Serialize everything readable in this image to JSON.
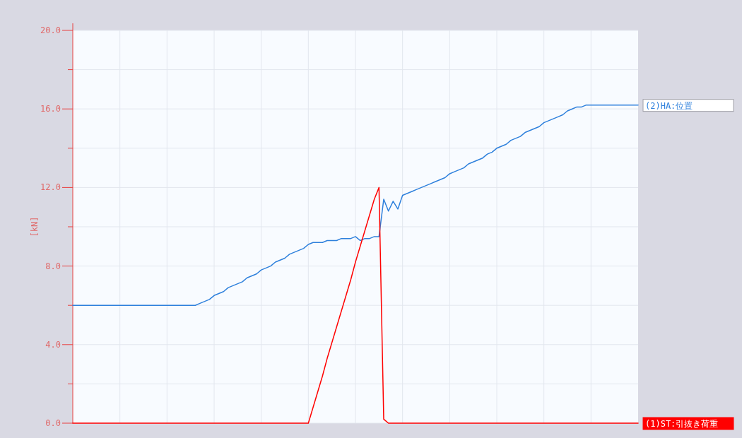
{
  "chart_data": {
    "type": "line",
    "ylabel": "[kN]",
    "ylim": [
      0,
      20
    ],
    "yticks": [
      {
        "value": 0,
        "label": "0.0"
      },
      {
        "value": 2,
        "label": null
      },
      {
        "value": 4,
        "label": "4.0"
      },
      {
        "value": 6,
        "label": null
      },
      {
        "value": 8,
        "label": "8.0"
      },
      {
        "value": 10,
        "label": null
      },
      {
        "value": 12,
        "label": "12.0"
      },
      {
        "value": 14,
        "label": null
      },
      {
        "value": 16,
        "label": "16.0"
      },
      {
        "value": 18,
        "label": null
      },
      {
        "value": 20,
        "label": "20.0"
      }
    ],
    "grid": true,
    "legend": false,
    "marker": "none",
    "line_style": "solid",
    "categories": [
      null,
      null,
      null,
      null,
      null,
      null,
      null,
      null,
      null,
      null,
      null,
      null,
      null,
      null,
      null,
      null,
      null,
      null,
      null,
      null,
      null,
      null,
      null,
      null,
      null,
      null,
      null,
      null,
      null,
      null,
      null,
      null,
      null,
      null,
      null,
      null,
      null,
      null,
      null,
      null,
      null,
      null,
      null,
      null,
      null,
      null,
      null,
      null,
      null,
      null,
      null,
      null,
      null,
      null,
      null,
      null,
      null,
      null,
      null,
      null,
      null,
      null,
      null,
      null,
      null,
      null,
      null,
      null,
      null,
      null,
      null,
      null,
      null,
      null,
      null,
      null,
      null,
      null,
      null,
      null,
      null,
      null,
      null,
      null,
      null,
      null,
      null,
      null,
      null,
      null,
      null,
      null,
      null,
      null,
      null,
      null,
      null,
      null,
      null,
      null,
      null,
      null,
      null,
      null,
      null,
      null,
      null,
      null,
      null,
      null,
      null,
      null,
      null,
      null,
      null,
      null,
      null,
      null,
      null,
      null,
      null
    ],
    "series": [
      {
        "name": "(2)HA:位置",
        "color": "#2e80dc",
        "values": [
          6.0,
          6.0,
          6.0,
          6.0,
          6.0,
          6.0,
          6.0,
          6.0,
          6.0,
          6.0,
          6.0,
          6.0,
          6.0,
          6.0,
          6.0,
          6.0,
          6.0,
          6.0,
          6.0,
          6.0,
          6.0,
          6.0,
          6.0,
          6.0,
          6.0,
          6.0,
          6.0,
          6.1,
          6.2,
          6.3,
          6.5,
          6.6,
          6.7,
          6.9,
          7.0,
          7.1,
          7.2,
          7.4,
          7.5,
          7.6,
          7.8,
          7.9,
          8.0,
          8.2,
          8.3,
          8.4,
          8.6,
          8.7,
          8.8,
          8.9,
          9.1,
          9.2,
          9.2,
          9.2,
          9.3,
          9.3,
          9.3,
          9.4,
          9.4,
          9.4,
          9.5,
          9.3,
          9.4,
          9.4,
          9.5,
          9.5,
          11.4,
          10.8,
          11.3,
          10.9,
          11.6,
          11.7,
          11.8,
          11.9,
          12.0,
          12.1,
          12.2,
          12.3,
          12.4,
          12.5,
          12.7,
          12.8,
          12.9,
          13.0,
          13.2,
          13.3,
          13.4,
          13.5,
          13.7,
          13.8,
          14.0,
          14.1,
          14.2,
          14.4,
          14.5,
          14.6,
          14.8,
          14.9,
          15.0,
          15.1,
          15.3,
          15.4,
          15.5,
          15.6,
          15.7,
          15.9,
          16.0,
          16.1,
          16.1,
          16.2,
          16.2,
          16.2,
          16.2,
          16.2,
          16.2,
          16.2,
          16.2,
          16.2,
          16.2,
          16.2,
          16.2
        ]
      },
      {
        "name": "(1)ST:引抜き荷重",
        "color": "#ff0000",
        "values": [
          0.0,
          0.0,
          0.0,
          0.0,
          0.0,
          0.0,
          0.0,
          0.0,
          0.0,
          0.0,
          0.0,
          0.0,
          0.0,
          0.0,
          0.0,
          0.0,
          0.0,
          0.0,
          0.0,
          0.0,
          0.0,
          0.0,
          0.0,
          0.0,
          0.0,
          0.0,
          0.0,
          0.0,
          0.0,
          0.0,
          0.0,
          0.0,
          0.0,
          0.0,
          0.0,
          0.0,
          0.0,
          0.0,
          0.0,
          0.0,
          0.0,
          0.0,
          0.0,
          0.0,
          0.0,
          0.0,
          0.0,
          0.0,
          0.0,
          0.0,
          0.0,
          0.8,
          1.6,
          2.4,
          3.3,
          4.1,
          4.9,
          5.7,
          6.5,
          7.3,
          8.2,
          9.0,
          9.8,
          10.6,
          11.4,
          12.0,
          0.2,
          0.0,
          0.0,
          0.0,
          0.0,
          0.0,
          0.0,
          0.0,
          0.0,
          0.0,
          0.0,
          0.0,
          0.0,
          0.0,
          0.0,
          0.0,
          0.0,
          0.0,
          0.0,
          0.0,
          0.0,
          0.0,
          0.0,
          0.0,
          0.0,
          0.0,
          0.0,
          0.0,
          0.0,
          0.0,
          0.0,
          0.0,
          0.0,
          0.0,
          0.0,
          0.0,
          0.0,
          0.0,
          0.0,
          0.0,
          0.0,
          0.0,
          0.0,
          0.0,
          0.0,
          0.0,
          0.0,
          0.0,
          0.0,
          0.0,
          0.0,
          0.0,
          0.0,
          0.0,
          0.0
        ]
      }
    ]
  }
}
